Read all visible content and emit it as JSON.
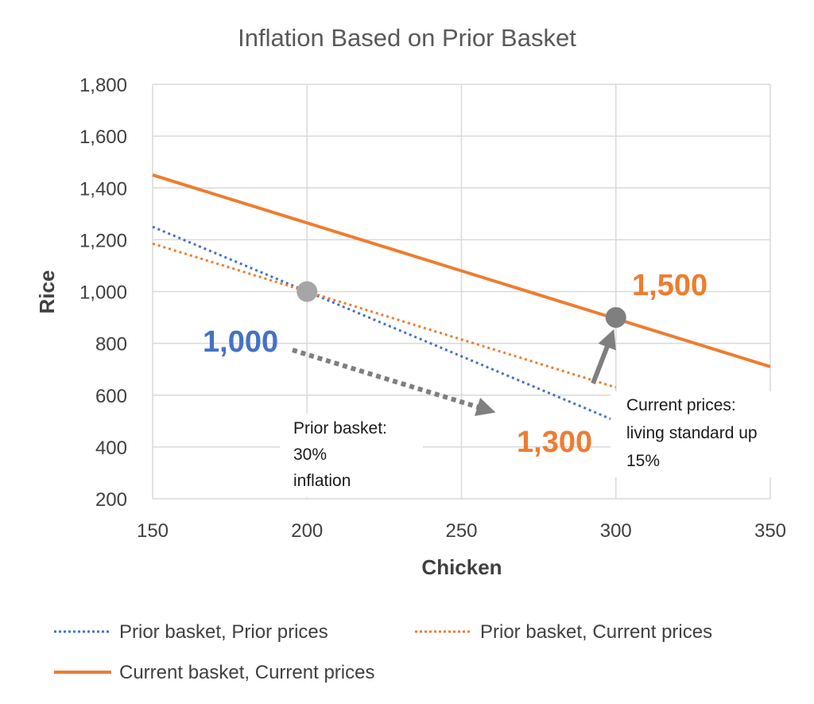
{
  "chart_data": {
    "type": "line",
    "title": "Inflation Based on Prior Basket",
    "xlabel": "Chicken",
    "ylabel": "Rice",
    "xlim": [
      150,
      350
    ],
    "ylim": [
      200,
      1800
    ],
    "x_ticks": [
      150,
      200,
      250,
      300,
      350
    ],
    "y_ticks": [
      200,
      400,
      600,
      800,
      1000,
      1200,
      1400,
      1600,
      1800
    ],
    "x_tick_labels": [
      "150",
      "200",
      "250",
      "300",
      "350"
    ],
    "y_tick_labels": [
      "200",
      "400",
      "600",
      "800",
      "1,000",
      "1,200",
      "1,400",
      "1,600",
      "1,800"
    ],
    "grid": true,
    "legend_position": "bottom",
    "series": [
      {
        "name": "Prior basket, Prior prices",
        "style": "dotted",
        "color": "#4472c4",
        "x": [
          150,
          300
        ],
        "y": [
          1250,
          500
        ]
      },
      {
        "name": "Prior basket, Current prices",
        "style": "dotted",
        "color": "#ed7d31",
        "x": [
          150,
          300
        ],
        "y": [
          1185,
          630
        ]
      },
      {
        "name": "Current basket, Current prices",
        "style": "solid",
        "color": "#ed7d31",
        "x": [
          150,
          350
        ],
        "y": [
          1450,
          710
        ]
      }
    ],
    "points": [
      {
        "x": 200,
        "y": 1000,
        "color": "#a6a6a6"
      },
      {
        "x": 300,
        "y": 900,
        "color": "#7f7f7f"
      }
    ],
    "annotations": {
      "label_1000": {
        "text": "1,000",
        "color": "#4472c4"
      },
      "label_1300": {
        "text": "1,300",
        "color": "#ed7d31"
      },
      "label_1500": {
        "text": "1,500",
        "color": "#ed7d31"
      },
      "note_prior": [
        "Prior basket:",
        "30%",
        "inflation"
      ],
      "note_current": [
        "Current prices:",
        "living standard up",
        "15%"
      ]
    },
    "arrow_color": "#7f7f7f"
  }
}
